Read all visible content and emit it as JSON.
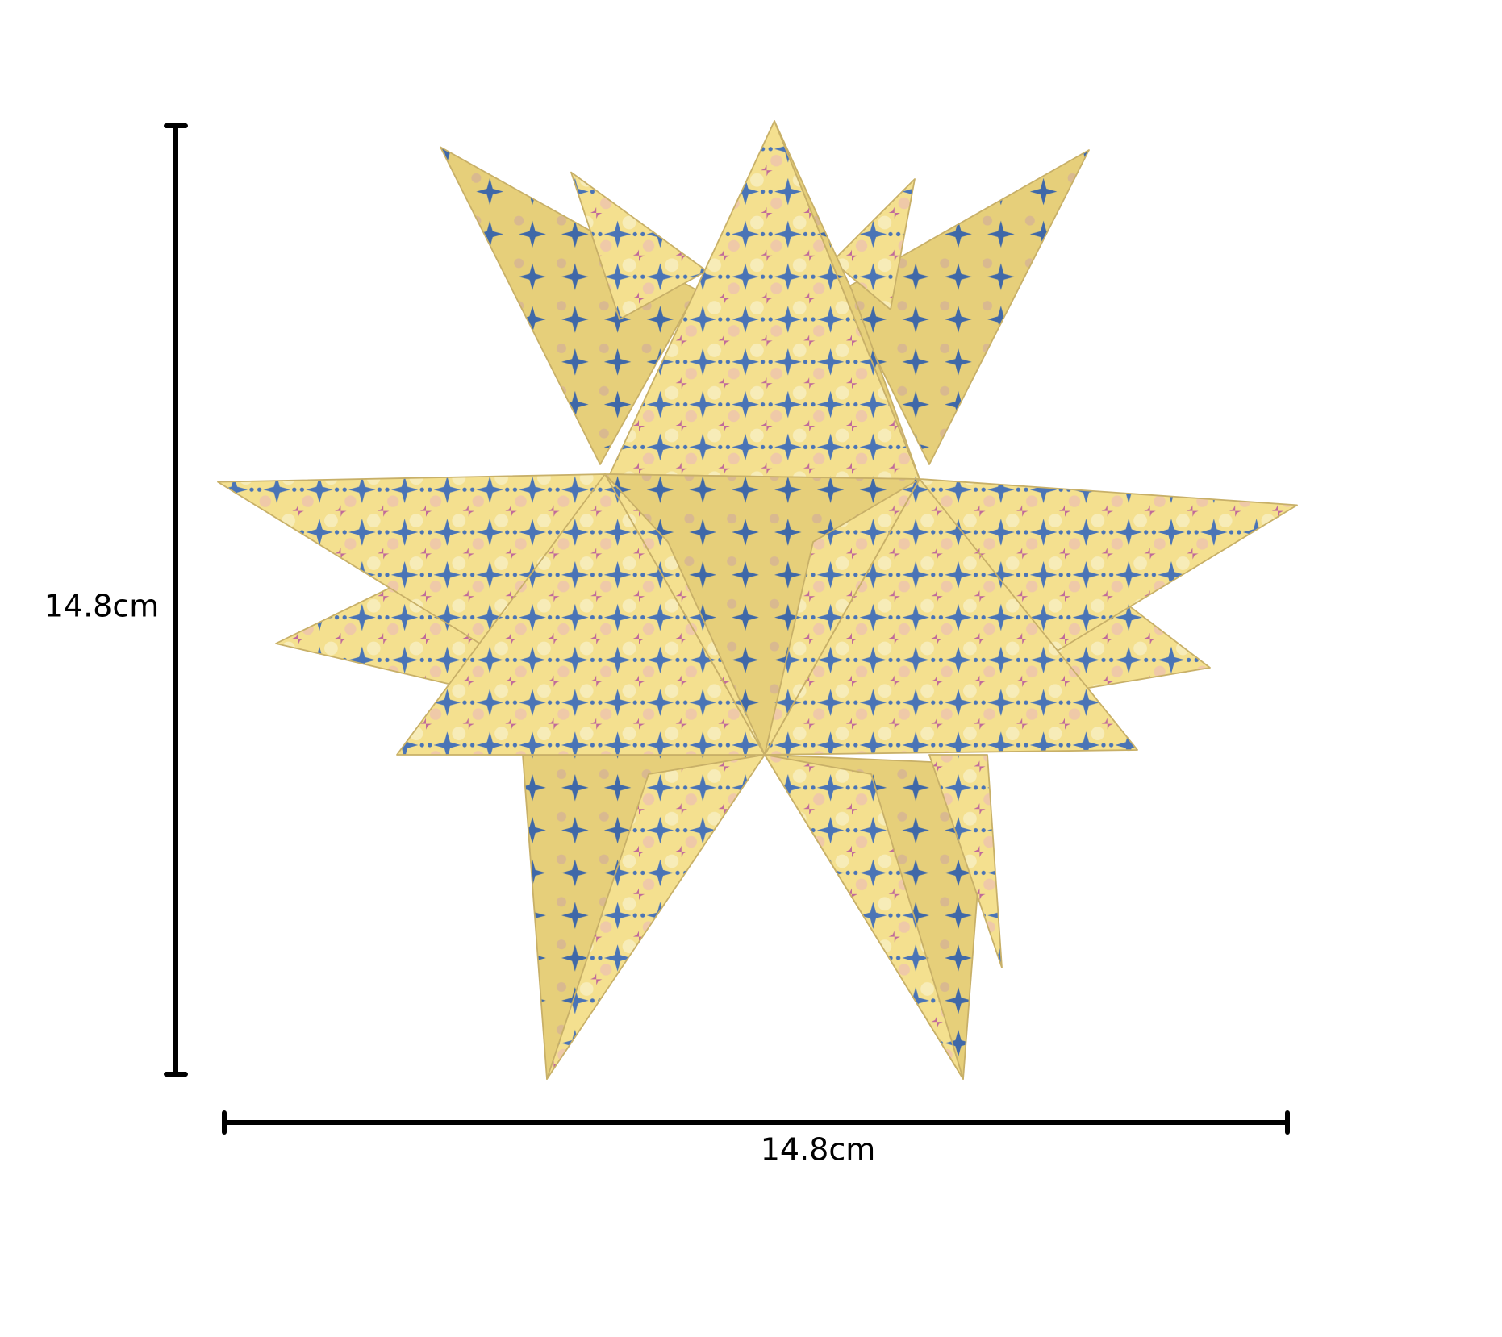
{
  "dimensions": {
    "height": "14.8cm",
    "width": "14.8cm"
  }
}
